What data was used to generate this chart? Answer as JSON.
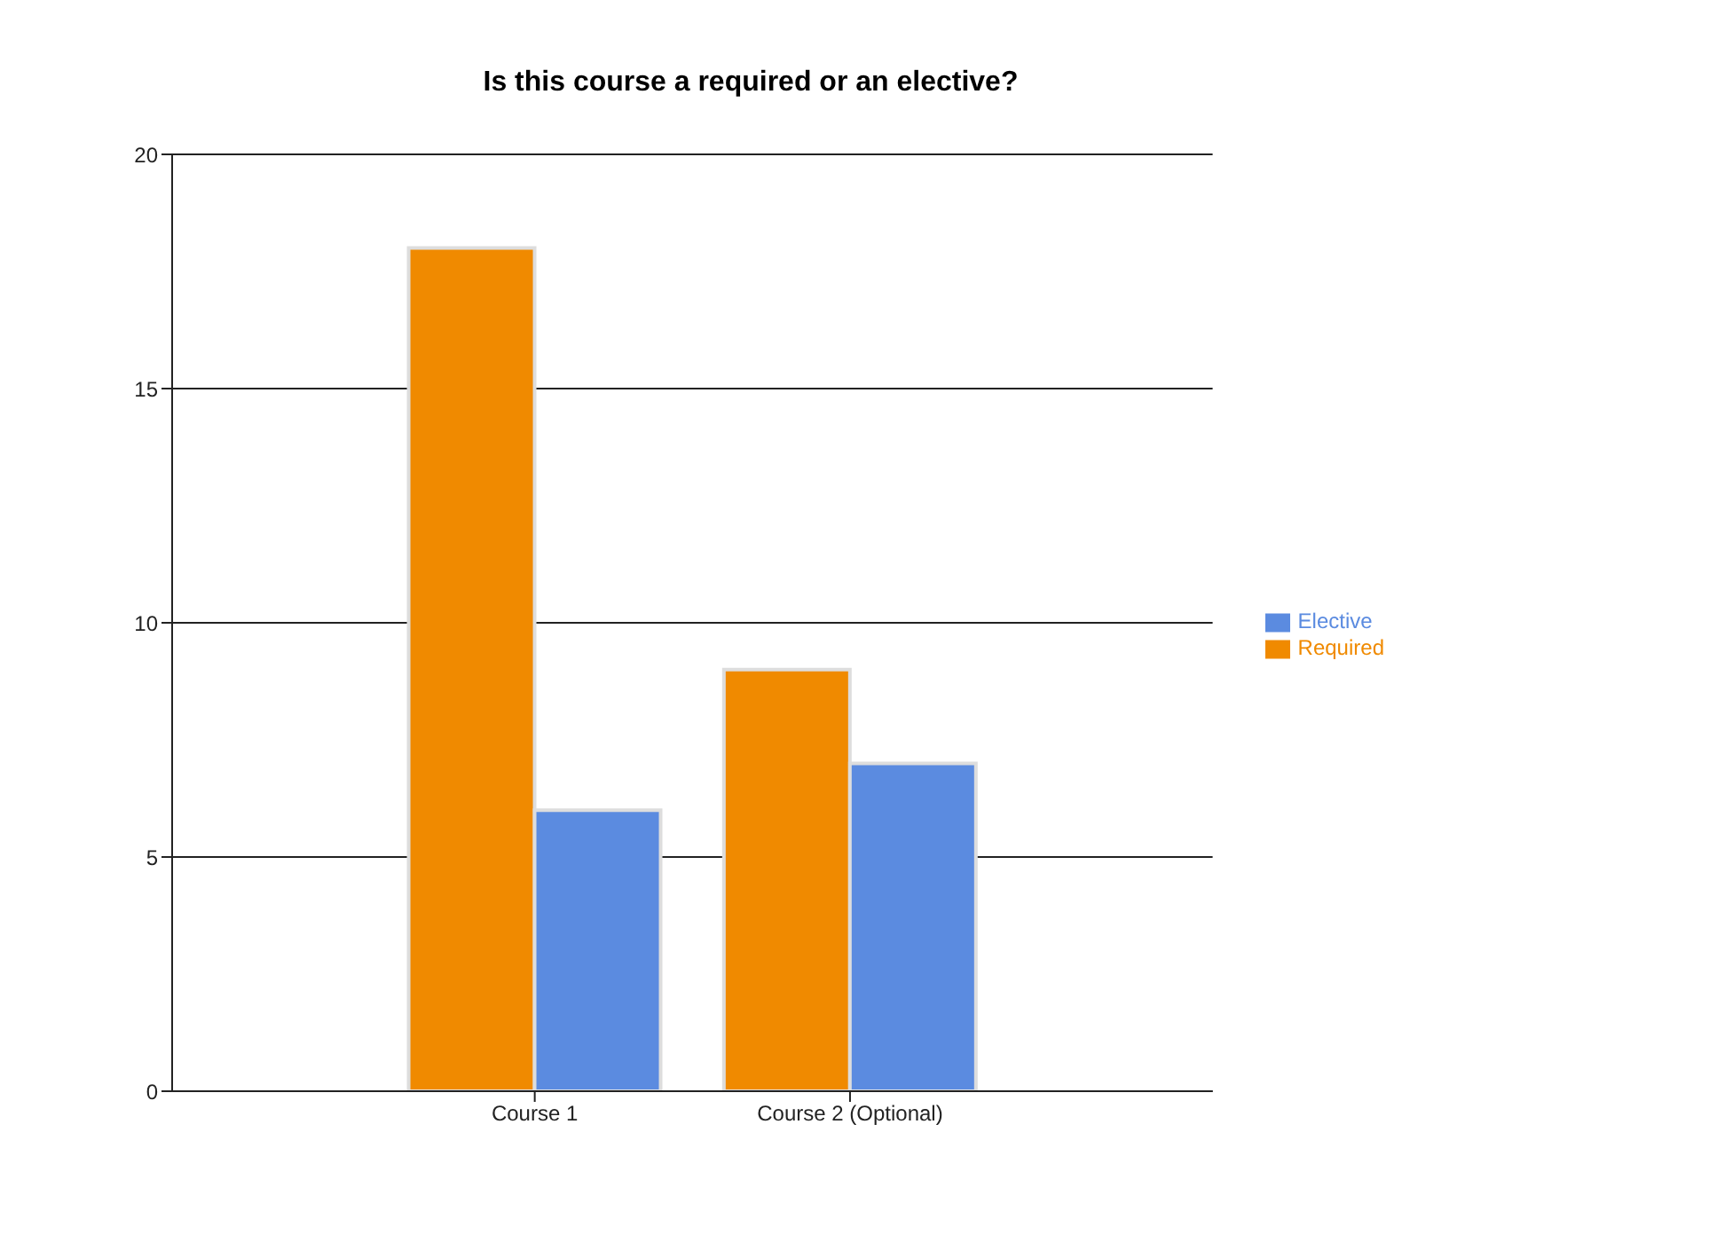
{
  "chart_data": {
    "type": "bar",
    "title": "Is this course a required or an elective?",
    "categories": [
      "Course 1",
      "Course 2 (Optional)"
    ],
    "series": [
      {
        "name": "Required",
        "color": "#f08a00",
        "values": [
          18,
          9
        ]
      },
      {
        "name": "Elective",
        "color": "#5b8be0",
        "values": [
          6,
          7
        ]
      }
    ],
    "ylim": [
      0,
      20
    ],
    "yticks": [
      0,
      5,
      10,
      15,
      20
    ],
    "grid": "y",
    "legend": "right"
  }
}
